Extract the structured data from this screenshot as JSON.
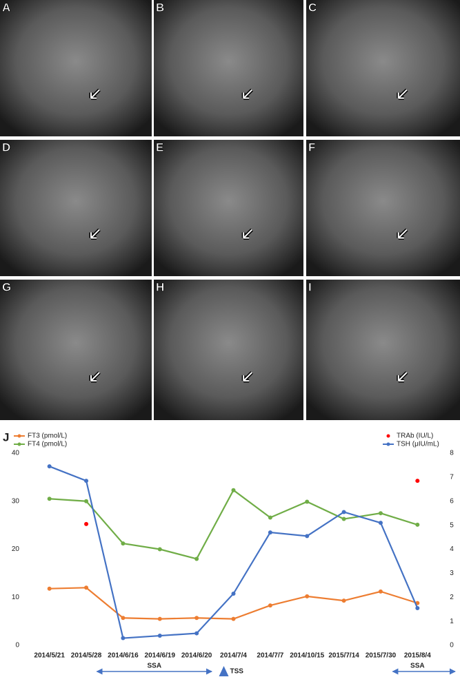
{
  "panels": [
    {
      "label": "A"
    },
    {
      "label": "B"
    },
    {
      "label": "C"
    },
    {
      "label": "D"
    },
    {
      "label": "E"
    },
    {
      "label": "F"
    },
    {
      "label": "G"
    },
    {
      "label": "H"
    },
    {
      "label": "I"
    }
  ],
  "chart_data": {
    "type": "line",
    "panel_label": "J",
    "categories": [
      "2014/5/21",
      "2014/5/28",
      "2014/6/16",
      "2014/6/19",
      "2014/6/20",
      "2014/7/4",
      "2014/7/7",
      "2014/10/15",
      "2015/7/14",
      "2015/7/30",
      "2015/8/4"
    ],
    "ylim": [
      0,
      40
    ],
    "yticks": [
      0,
      10,
      20,
      30,
      40
    ],
    "y2lim": [
      0,
      8
    ],
    "y2ticks": [
      0,
      1,
      2,
      3,
      4,
      5,
      6,
      7,
      8
    ],
    "series": [
      {
        "name": "FT3 (pmol/L)",
        "color": "#ed7d31",
        "values": [
          11.8,
          12,
          5.7,
          5.5,
          5.7,
          5.5,
          8.3,
          10.2,
          9.3,
          11.2,
          8.8
        ]
      },
      {
        "name": "FT4 (pmol/L)",
        "color": "#70ad47",
        "values": [
          30.5,
          30,
          21.2,
          20,
          18,
          32.3,
          26.6,
          29.9,
          26.3,
          27.5,
          25.1
        ]
      },
      {
        "name": "TRAb (IU/L)",
        "color": "#ff0000",
        "axis": "y2",
        "style": "points",
        "values": [
          null,
          5.05,
          null,
          null,
          null,
          null,
          null,
          null,
          null,
          null,
          6.85
        ]
      },
      {
        "name": "TSH (μIU/mL)",
        "color": "#4472c4",
        "axis": "y2",
        "values": [
          7.45,
          6.85,
          0.3,
          0.4,
          0.5,
          2.15,
          4.7,
          4.55,
          5.55,
          5.1,
          1.55
        ]
      }
    ],
    "annotations": [
      "SSA",
      "TSS",
      "SSA"
    ]
  }
}
